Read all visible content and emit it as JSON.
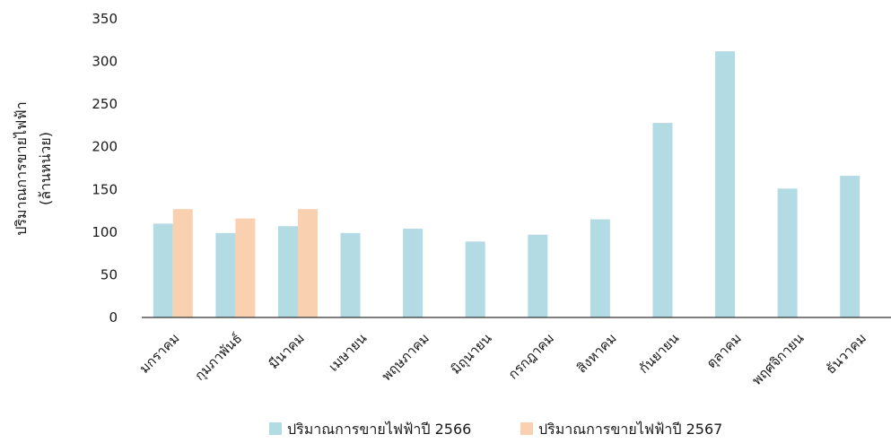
{
  "chart_data": {
    "type": "bar",
    "title": "",
    "ylabel_lines": [
      "ปริมาณการขายไฟฟ้า",
      "(ล้านหน่วย)"
    ],
    "xlabel": "",
    "ylim": [
      0,
      350
    ],
    "yticks": [
      0,
      50,
      100,
      150,
      200,
      250,
      300,
      350
    ],
    "grid": false,
    "legend_position": "bottom",
    "categories": [
      "มกราคม",
      "กุมภาพันธ์",
      "มีนาคม",
      "เมษายน",
      "พฤษภาคม",
      "มิถุนายน",
      "กรกฎาคม",
      "สิงหาคม",
      "กันยายน",
      "ตุลาคม",
      "พฤศจิกายน",
      "ธันวาคม"
    ],
    "series": [
      {
        "name": "ปริมาณการขายไฟฟ้าปี 2566",
        "color": "#b3dbe3",
        "values": [
          110,
          99,
          107,
          99,
          104,
          89,
          97,
          115,
          228,
          312,
          151,
          166
        ]
      },
      {
        "name": "ปริมาณการขายไฟฟ้าปี 2567",
        "color": "#f9d1b0",
        "values": [
          127,
          116,
          127,
          null,
          null,
          null,
          null,
          null,
          null,
          null,
          null,
          null
        ]
      }
    ]
  }
}
